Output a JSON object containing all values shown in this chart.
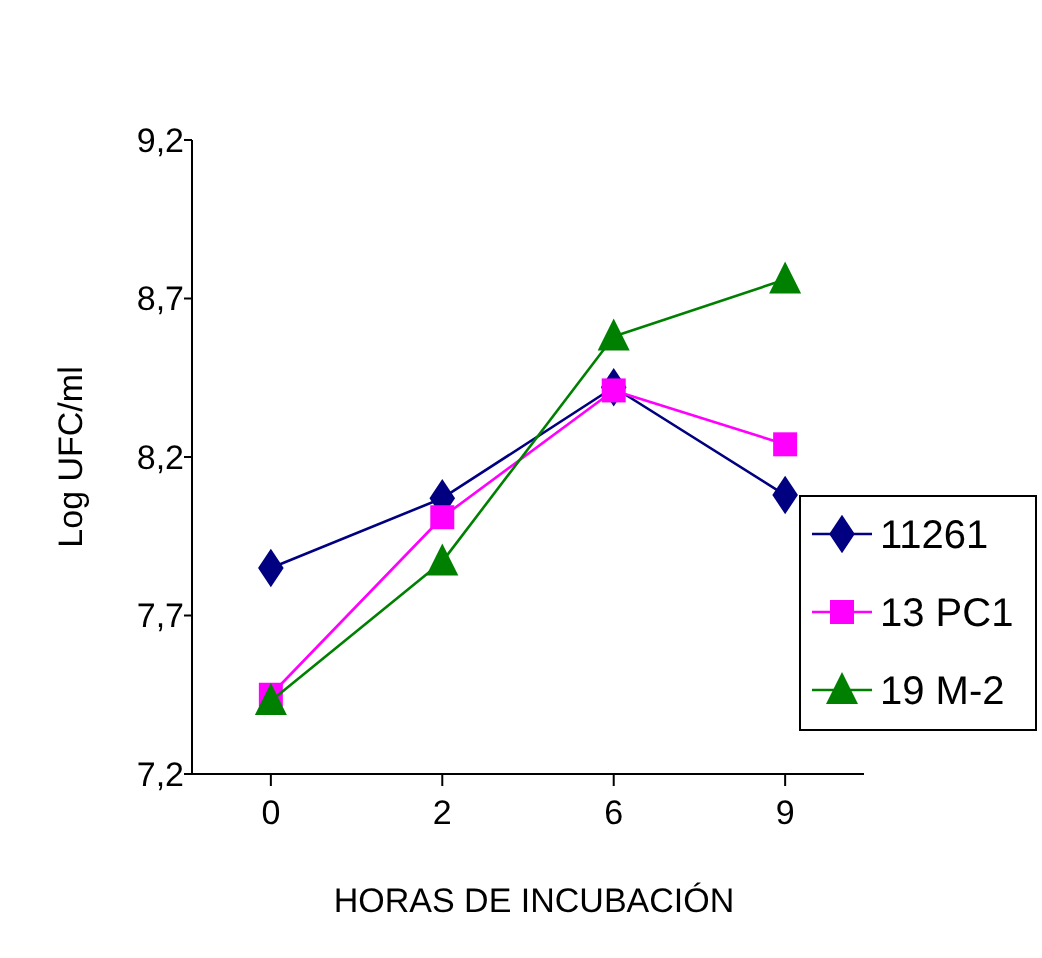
{
  "chart_data": {
    "type": "line",
    "xlabel": "HORAS DE INCUBACIÓN",
    "ylabel": "Log UFC/ml",
    "categories": [
      "0",
      "2",
      "6",
      "9"
    ],
    "series": [
      {
        "name": "11261",
        "color": "#000080",
        "marker": "diamond",
        "values": [
          7.85,
          8.07,
          8.42,
          8.08
        ]
      },
      {
        "name": "13 PC1",
        "color": "#ff00ff",
        "marker": "square",
        "values": [
          7.45,
          8.01,
          8.41,
          8.24
        ]
      },
      {
        "name": "19 M-2",
        "color": "#008000",
        "marker": "triangle",
        "values": [
          7.43,
          7.87,
          8.58,
          8.76
        ]
      }
    ],
    "ylim": [
      7.2,
      9.2
    ],
    "yticks": [
      {
        "value": 7.2,
        "label": "7,2"
      },
      {
        "value": 7.7,
        "label": "7,7"
      },
      {
        "value": 8.2,
        "label": "8,2"
      },
      {
        "value": 8.7,
        "label": "8,7"
      },
      {
        "value": 9.2,
        "label": "9,2"
      }
    ],
    "grid": false,
    "legend": "right"
  }
}
